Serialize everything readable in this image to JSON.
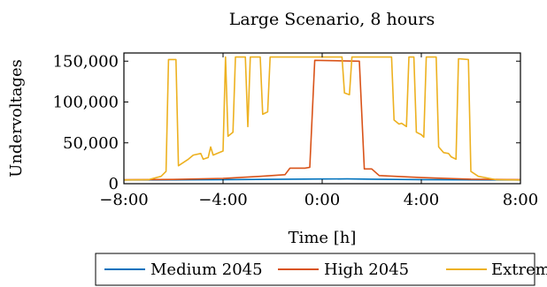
{
  "chart_data": {
    "type": "line",
    "title": "Large Scenario, 8 hours",
    "xlabel": "Time [h]",
    "ylabel": "Undervoltages",
    "xlim": [
      -8,
      8
    ],
    "ylim": [
      0,
      160000
    ],
    "grid": false,
    "legend_position": "bottom-outside",
    "x_ticks": [
      {
        "value": -8,
        "label": "−8:00"
      },
      {
        "value": -4,
        "label": "−4:00"
      },
      {
        "value": 0,
        "label": "0:00"
      },
      {
        "value": 4,
        "label": "4:00"
      },
      {
        "value": 8,
        "label": "8:00"
      }
    ],
    "y_ticks": [
      {
        "value": 0,
        "label": "0"
      },
      {
        "value": 50000,
        "label": "50,000"
      },
      {
        "value": 100000,
        "label": "100,000"
      },
      {
        "value": 150000,
        "label": "150,000"
      }
    ],
    "series": [
      {
        "name": "Medium 2045",
        "color": "#0072bd",
        "points": [
          [
            -8,
            4500
          ],
          [
            -6,
            4600
          ],
          [
            -4,
            4900
          ],
          [
            -2,
            5300
          ],
          [
            0,
            5700
          ],
          [
            1,
            5800
          ],
          [
            2,
            5500
          ],
          [
            4,
            5000
          ],
          [
            6,
            4700
          ],
          [
            8,
            4500
          ]
        ]
      },
      {
        "name": "High 2045",
        "color": "#d95319",
        "points": [
          [
            -8,
            4800
          ],
          [
            -6,
            5200
          ],
          [
            -4,
            6500
          ],
          [
            -2.5,
            9000
          ],
          [
            -1.5,
            11000
          ],
          [
            -1.3,
            19000
          ],
          [
            -0.7,
            19000
          ],
          [
            -0.5,
            20000
          ],
          [
            -0.3,
            151000
          ],
          [
            1.5,
            150000
          ],
          [
            1.7,
            18000
          ],
          [
            2.0,
            18000
          ],
          [
            2.3,
            10000
          ],
          [
            4,
            7500
          ],
          [
            6,
            5500
          ],
          [
            8,
            5000
          ]
        ]
      },
      {
        "name": "Extreme",
        "color": "#edb120",
        "points": [
          [
            -8,
            4500
          ],
          [
            -7.0,
            5000
          ],
          [
            -6.5,
            9000
          ],
          [
            -6.3,
            15000
          ],
          [
            -6.2,
            152000
          ],
          [
            -5.9,
            152000
          ],
          [
            -5.8,
            22000
          ],
          [
            -5.4,
            30000
          ],
          [
            -5.2,
            35000
          ],
          [
            -4.9,
            37000
          ],
          [
            -4.8,
            30000
          ],
          [
            -4.6,
            32000
          ],
          [
            -4.5,
            45000
          ],
          [
            -4.4,
            35000
          ],
          [
            -4.0,
            40000
          ],
          [
            -3.9,
            155000
          ],
          [
            -3.8,
            58000
          ],
          [
            -3.6,
            63000
          ],
          [
            -3.5,
            155000
          ],
          [
            -3.1,
            155000
          ],
          [
            -3.0,
            70000
          ],
          [
            -2.9,
            155000
          ],
          [
            -2.5,
            155000
          ],
          [
            -2.4,
            85000
          ],
          [
            -2.2,
            88000
          ],
          [
            -2.1,
            155000
          ],
          [
            0.8,
            155000
          ],
          [
            0.9,
            111000
          ],
          [
            1.1,
            109000
          ],
          [
            1.2,
            155000
          ],
          [
            2.8,
            155000
          ],
          [
            2.9,
            78000
          ],
          [
            3.1,
            73000
          ],
          [
            3.2,
            74000
          ],
          [
            3.4,
            70000
          ],
          [
            3.5,
            155000
          ],
          [
            3.7,
            155000
          ],
          [
            3.8,
            63000
          ],
          [
            4.0,
            60000
          ],
          [
            4.1,
            57000
          ],
          [
            4.2,
            155000
          ],
          [
            4.6,
            155000
          ],
          [
            4.7,
            45000
          ],
          [
            4.9,
            38000
          ],
          [
            5.1,
            37000
          ],
          [
            5.2,
            33000
          ],
          [
            5.4,
            30000
          ],
          [
            5.5,
            153000
          ],
          [
            5.9,
            152000
          ],
          [
            6.0,
            15000
          ],
          [
            6.3,
            9000
          ],
          [
            7.0,
            5000
          ],
          [
            8,
            4500
          ]
        ]
      }
    ]
  }
}
